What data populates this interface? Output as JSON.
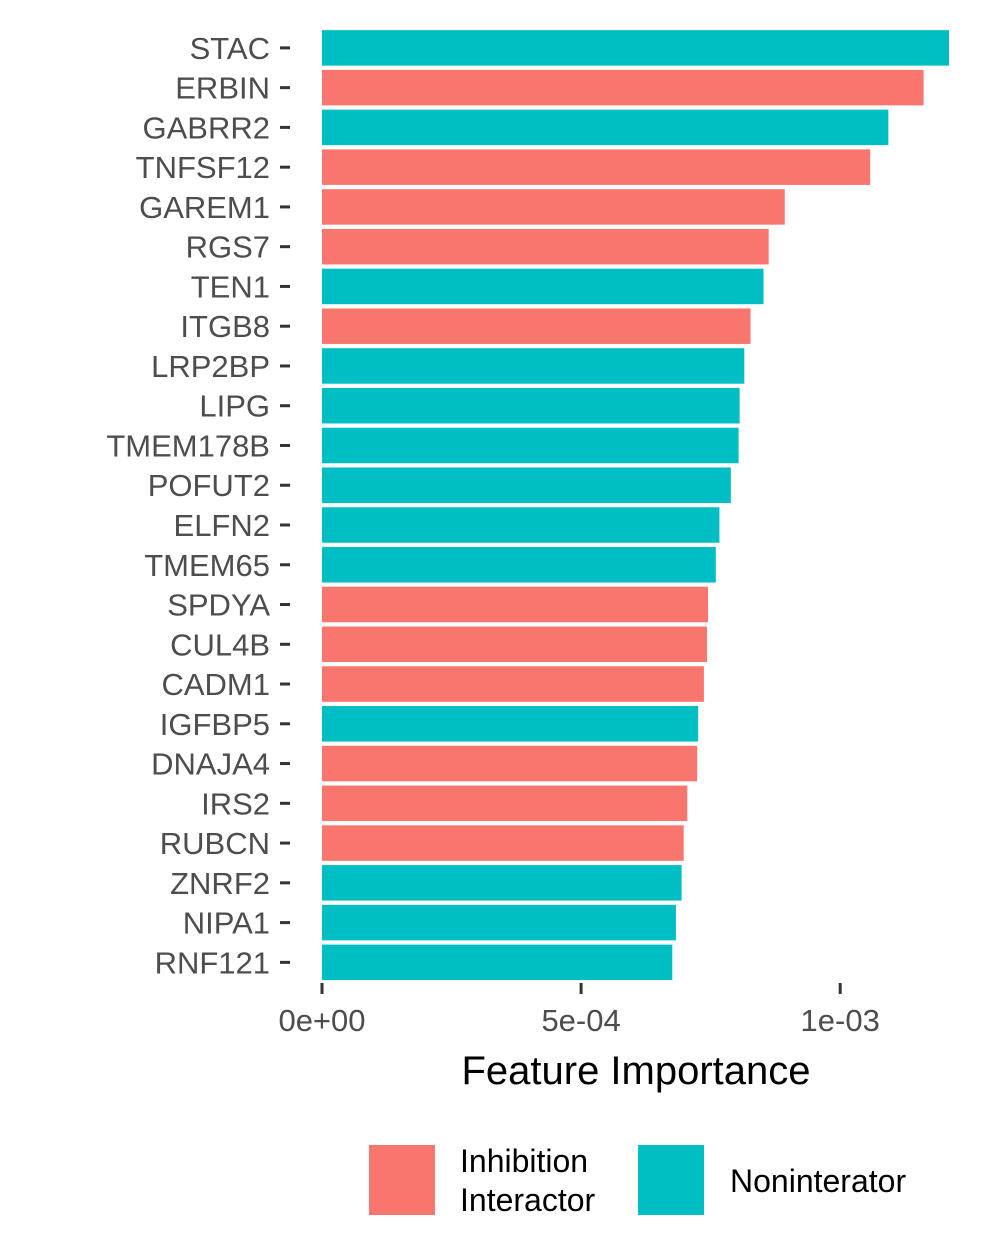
{
  "chart_data": {
    "type": "bar",
    "orientation": "horizontal",
    "title": "",
    "xlabel": "Feature Importance",
    "ylabel": "",
    "xlim": [
      0,
      0.00121
    ],
    "x_ticks": [
      {
        "value": 0,
        "label": "0e+00"
      },
      {
        "value": 0.0005,
        "label": "5e-04"
      },
      {
        "value": 0.001,
        "label": "1e-03"
      }
    ],
    "grid": false,
    "legend_position": "bottom",
    "colors": {
      "Inhibition Interactor": "#F8766D",
      "Noninterator": "#00BFC4",
      "tick": "#333333",
      "tick_text": "#4d4d4d"
    },
    "legend": [
      {
        "key": "Inhibition Interactor",
        "lines": [
          "Inhibition",
          "Interactor"
        ],
        "color": "#F8766D"
      },
      {
        "key": "Noninterator",
        "lines": [
          "Noninterator"
        ],
        "color": "#00BFC4"
      }
    ],
    "categories": [
      "STAC",
      "ERBIN",
      "GABRR2",
      "TNFSF12",
      "GAREM1",
      "RGS7",
      "TEN1",
      "ITGB8",
      "LRP2BP",
      "LIPG",
      "TMEM178B",
      "POFUT2",
      "ELFN2",
      "TMEM65",
      "SPDYA",
      "CUL4B",
      "CADM1",
      "IGFBP5",
      "DNAJA4",
      "IRS2",
      "RUBCN",
      "ZNRF2",
      "NIPA1",
      "RNF121"
    ],
    "values": [
      0.00121,
      0.001161,
      0.001093,
      0.001058,
      0.000893,
      0.000862,
      0.000852,
      0.000827,
      0.000815,
      0.000806,
      0.000804,
      0.000789,
      0.000767,
      0.00076,
      0.000745,
      0.000743,
      0.000737,
      0.000726,
      0.000724,
      0.000705,
      0.000698,
      0.000694,
      0.000683,
      0.000676
    ],
    "groups": [
      "Noninterator",
      "Inhibition Interactor",
      "Noninterator",
      "Inhibition Interactor",
      "Inhibition Interactor",
      "Inhibition Interactor",
      "Noninterator",
      "Inhibition Interactor",
      "Noninterator",
      "Noninterator",
      "Noninterator",
      "Noninterator",
      "Noninterator",
      "Noninterator",
      "Inhibition Interactor",
      "Inhibition Interactor",
      "Inhibition Interactor",
      "Noninterator",
      "Inhibition Interactor",
      "Inhibition Interactor",
      "Inhibition Interactor",
      "Noninterator",
      "Noninterator",
      "Noninterator"
    ]
  }
}
